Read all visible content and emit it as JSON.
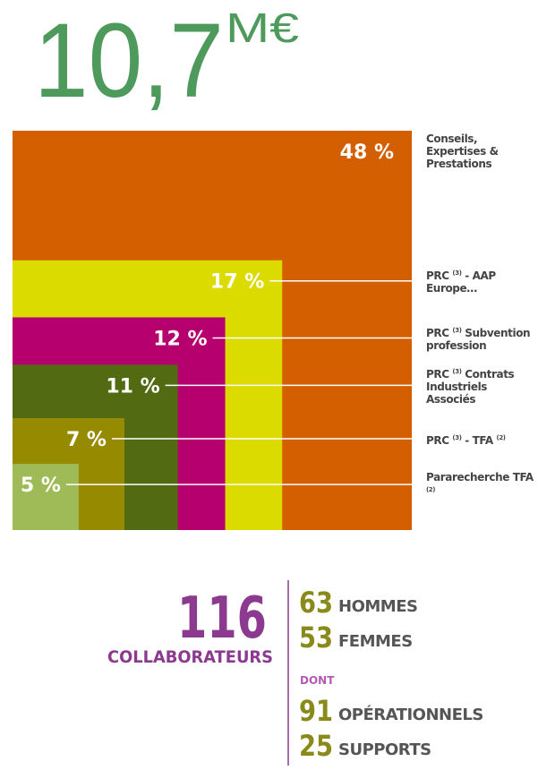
{
  "headline": {
    "value": "10,7",
    "unit": "M€"
  },
  "chart_data": {
    "type": "nested-squares",
    "categories": [
      "Conseils, Expertises & Prestations",
      "PRC (3) - AAP Europe…",
      "PRC (3) Subvention profession",
      "PRC (3) Contrats Industriels Associés",
      "PRC (3) - TFA (2)",
      "Pararecherche TFA (2)"
    ],
    "values": [
      48,
      17,
      12,
      11,
      7,
      5
    ],
    "value_labels": [
      "48 %",
      "17 %",
      "12 %",
      "11 %",
      "7 %",
      "5 %"
    ],
    "colors": [
      "#d45f00",
      "#dbdb00",
      "#b5006e",
      "#526b12",
      "#958a00",
      "#9fbb57"
    ]
  },
  "staff": {
    "total": "116",
    "total_label": "COLLABORATEURS",
    "groups": [
      {
        "value": "63",
        "label": "HOMMES"
      },
      {
        "value": "53",
        "label": "FEMMES"
      }
    ],
    "dont": "DONT",
    "detail": [
      {
        "value": "91",
        "label": "OPÉRATIONNELS"
      },
      {
        "value": "25",
        "label": "SUPPORTS"
      }
    ]
  }
}
